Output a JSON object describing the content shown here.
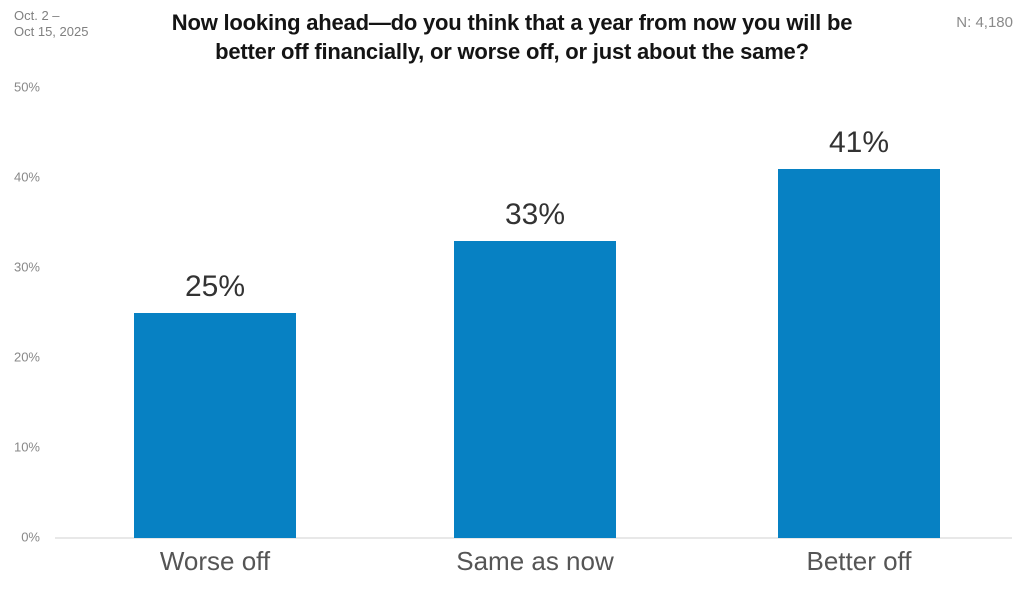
{
  "header": {
    "date_range_line1": "Oct. 2 –",
    "date_range_line2": "Oct 15, 2025",
    "title_line1": "Now looking ahead—do you think that a year from now you will be",
    "title_line2": "better off financially, or worse off, or just about the same?",
    "sample_label": "N: 4,180"
  },
  "colors": {
    "bar": "#0781c3",
    "title": "#141414",
    "axis_line": "#e8e8e8",
    "tick_label": "#888888",
    "value_label": "#333333",
    "category_label": "#555555",
    "meta_label": "#8a8a8a"
  },
  "chart_data": {
    "type": "bar",
    "title": "Now looking ahead—do you think that a year from now you will be better off financially, or worse off, or just about the same?",
    "date_range": "Oct. 2 – Oct 15, 2025",
    "sample_size": "N: 4,180",
    "categories": [
      "Worse off",
      "Same as now",
      "Better off"
    ],
    "values": [
      25,
      33,
      41
    ],
    "value_labels": [
      "25%",
      "33%",
      "41%"
    ],
    "ylim": [
      0,
      50
    ],
    "yticks": [
      0,
      10,
      20,
      30,
      40,
      50
    ],
    "ytick_labels": [
      "0%",
      "10%",
      "20%",
      "30%",
      "40%",
      "50%"
    ],
    "bar_color": "#0781c3",
    "grid": false,
    "legend": false,
    "xlabel": "",
    "ylabel": ""
  }
}
